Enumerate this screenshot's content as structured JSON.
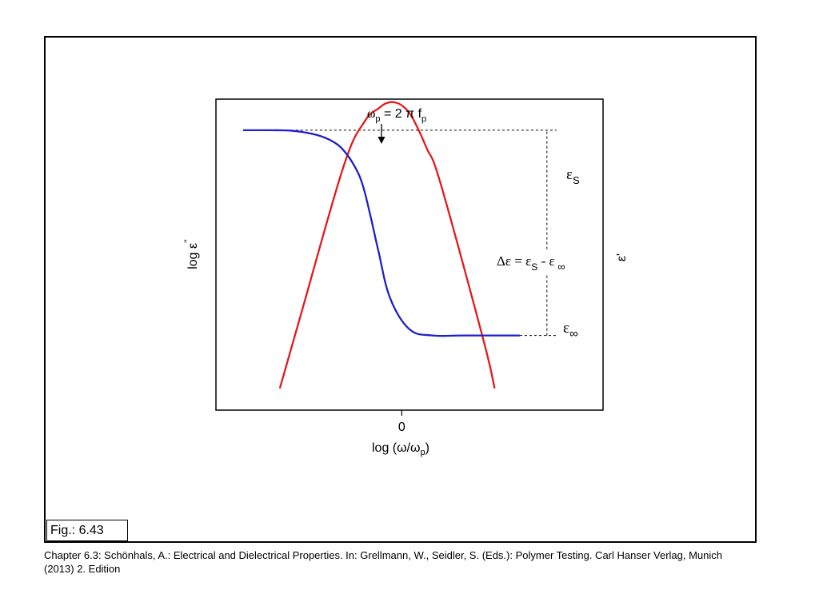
{
  "figure": {
    "label": "Fig.: 6.43",
    "caption": "Chapter 6.3: Schönhals, A.: Electrical and Dielectrical Properties. In: Grellmann, W., Seidler, S. (Eds.): Polymer Testing. Carl Hanser Verlag, Munich (2013) 2. Edition"
  },
  "chart_data": {
    "type": "line",
    "xlabel": "log (ω/ω",
    "xlabel_sub": "p",
    "xlabel_close": ")",
    "ylabel_left": "log ε",
    "ylabel_left_sup": "''",
    "ylabel_right": "ε'",
    "x_ticks": [
      "0"
    ],
    "x_range": [
      0,
      1
    ],
    "y_range": [
      0,
      1
    ],
    "grid": false,
    "annotations": {
      "peak": {
        "omega": "ω",
        "sub": "p",
        "rest": " = 2 π f",
        "rest_sub": "p"
      },
      "eps_s": {
        "main": "ε",
        "sub": "S"
      },
      "eps_inf": {
        "main": "ε",
        "sub": "∞"
      },
      "delta": {
        "a": "Δε  = ε",
        "a_sub": "S",
        "b": " - ε",
        "b_sub": " ∞"
      }
    },
    "series": [
      {
        "key": "loss",
        "color": "#e31a1c",
        "x": [
          0.165,
          0.22,
          0.33,
          0.385,
          0.42,
          0.44,
          0.46,
          0.48,
          0.5,
          0.52,
          0.545,
          0.58,
          0.69,
          0.72
        ],
        "y": [
          0.07,
          0.31,
          0.785,
          0.93,
          0.97,
          0.987,
          0.99,
          0.98,
          0.955,
          0.91,
          0.84,
          0.73,
          0.23,
          0.07
        ]
      },
      {
        "key": "permittivity",
        "color": "#1f1fcc",
        "x": [
          0.07,
          0.14,
          0.2,
          0.26,
          0.3,
          0.33,
          0.36,
          0.38,
          0.4,
          0.42,
          0.45,
          0.5,
          0.56,
          0.64,
          0.785
        ],
        "y": [
          0.9,
          0.9,
          0.898,
          0.885,
          0.865,
          0.835,
          0.78,
          0.72,
          0.62,
          0.51,
          0.36,
          0.26,
          0.24,
          0.24,
          0.24
        ]
      }
    ],
    "reference_lines": [
      {
        "key": "eps_s_line",
        "style": "dashed",
        "y": 0.9,
        "x": [
          0.07,
          0.88
        ]
      },
      {
        "key": "eps_inf_line",
        "style": "dashed",
        "y": 0.24,
        "x": [
          0.785,
          0.88
        ]
      },
      {
        "key": "delta_vertical",
        "style": "dashed",
        "x": 0.855,
        "y": [
          0.24,
          0.9
        ]
      }
    ]
  }
}
